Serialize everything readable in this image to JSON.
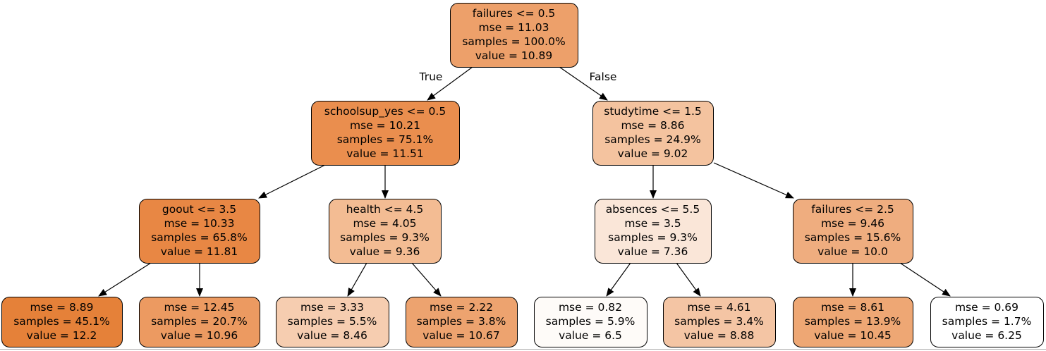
{
  "tree": {
    "nodes": [
      {
        "id": "n0",
        "lines": [
          "failures <= 0.5",
          "mse = 11.03",
          "samples = 100.0%",
          "value = 10.89"
        ],
        "fill": "#eda06a"
      },
      {
        "id": "n1",
        "lines": [
          "schoolsup_yes <= 0.5",
          "mse = 10.21",
          "samples = 75.1%",
          "value = 11.51"
        ],
        "fill": "#ea8e4e"
      },
      {
        "id": "n2",
        "lines": [
          "studytime <= 1.5",
          "mse = 8.86",
          "samples = 24.9%",
          "value = 9.02"
        ],
        "fill": "#f4c39f"
      },
      {
        "id": "n3",
        "lines": [
          "goout <= 3.5",
          "mse = 10.33",
          "samples = 65.8%",
          "value = 11.81"
        ],
        "fill": "#e88744"
      },
      {
        "id": "n4",
        "lines": [
          "health <= 4.5",
          "mse = 4.05",
          "samples = 9.3%",
          "value = 9.36"
        ],
        "fill": "#f3bc93"
      },
      {
        "id": "n5",
        "lines": [
          "absences <= 5.5",
          "mse = 3.5",
          "samples = 9.3%",
          "value = 7.36"
        ],
        "fill": "#fae6d8"
      },
      {
        "id": "n6",
        "lines": [
          "failures <= 2.5",
          "mse = 9.46",
          "samples = 15.6%",
          "value = 10.0"
        ],
        "fill": "#efad7f"
      },
      {
        "id": "n7",
        "lines": [
          "mse = 8.89",
          "samples = 45.1%",
          "value = 12.2"
        ],
        "fill": "#e58139"
      },
      {
        "id": "n8",
        "lines": [
          "mse = 12.45",
          "samples = 20.7%",
          "value = 10.96"
        ],
        "fill": "#ec9a61"
      },
      {
        "id": "n9",
        "lines": [
          "mse = 3.33",
          "samples = 5.5%",
          "value = 8.46"
        ],
        "fill": "#f6cdb0"
      },
      {
        "id": "n10",
        "lines": [
          "mse = 2.22",
          "samples = 3.8%",
          "value = 10.67"
        ],
        "fill": "#eda36f"
      },
      {
        "id": "n11",
        "lines": [
          "mse = 0.82",
          "samples = 5.9%",
          "value = 6.5"
        ],
        "fill": "#fefbf8"
      },
      {
        "id": "n12",
        "lines": [
          "mse = 4.61",
          "samples = 3.4%",
          "value = 8.88"
        ],
        "fill": "#f4c5a4"
      },
      {
        "id": "n13",
        "lines": [
          "mse = 8.61",
          "samples = 13.9%",
          "value = 10.45"
        ],
        "fill": "#eea774"
      },
      {
        "id": "n14",
        "lines": [
          "mse = 0.69",
          "samples = 1.7%",
          "value = 6.25"
        ],
        "fill": "#ffffff"
      }
    ],
    "edges": [
      {
        "from": "n0",
        "to": "n1",
        "label": "True"
      },
      {
        "from": "n0",
        "to": "n2",
        "label": "False"
      },
      {
        "from": "n1",
        "to": "n3",
        "label": ""
      },
      {
        "from": "n1",
        "to": "n4",
        "label": ""
      },
      {
        "from": "n2",
        "to": "n5",
        "label": ""
      },
      {
        "from": "n2",
        "to": "n6",
        "label": ""
      },
      {
        "from": "n3",
        "to": "n7",
        "label": ""
      },
      {
        "from": "n3",
        "to": "n8",
        "label": ""
      },
      {
        "from": "n4",
        "to": "n9",
        "label": ""
      },
      {
        "from": "n4",
        "to": "n10",
        "label": ""
      },
      {
        "from": "n5",
        "to": "n11",
        "label": ""
      },
      {
        "from": "n5",
        "to": "n12",
        "label": ""
      },
      {
        "from": "n6",
        "to": "n13",
        "label": ""
      },
      {
        "from": "n6",
        "to": "n14",
        "label": ""
      }
    ]
  }
}
